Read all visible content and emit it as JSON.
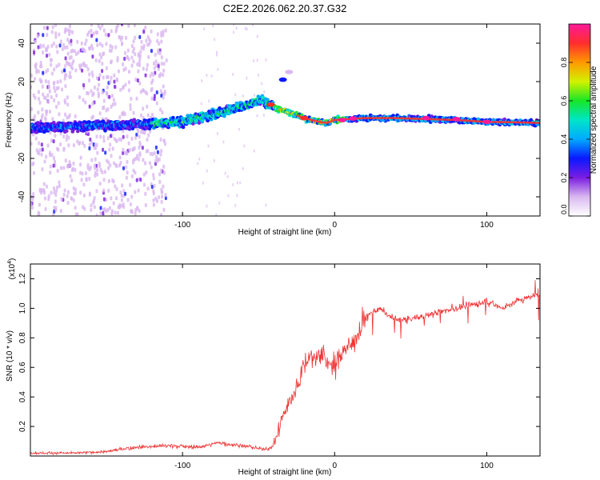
{
  "figure_title": "C2E2.2026.062.20.37.G32",
  "chart_data": [
    {
      "type": "heatmap",
      "title": "C2E2.2026.062.20.37.G32",
      "xlabel": "Height of straight line (km)",
      "ylabel": "Frequency (Hz)",
      "xlim": [
        -200,
        135
      ],
      "ylim": [
        -50,
        50
      ],
      "x_ticks": [
        -100,
        0,
        100
      ],
      "y_ticks": [
        -40,
        -20,
        0,
        20,
        40
      ],
      "x_tick_labels": [
        "-100",
        "0",
        "100"
      ],
      "y_tick_labels": [
        "-40",
        "-20",
        "0",
        "20",
        "40"
      ],
      "grid": false,
      "ridge_description": "Doppler frequency trace",
      "ridge": {
        "x": [
          -200,
          -180,
          -160,
          -140,
          -120,
          -100,
          -90,
          -80,
          -70,
          -60,
          -55,
          -50,
          -47,
          -45,
          -42,
          -40,
          -35,
          -30,
          -25,
          -20,
          -15,
          -10,
          -5,
          0,
          20,
          40,
          60,
          80,
          100,
          120,
          135
        ],
        "y": [
          -4,
          -3.5,
          -3,
          -2.5,
          -2,
          -1,
          1,
          3,
          5,
          7.5,
          8.5,
          10,
          10.5,
          9,
          8,
          7,
          5,
          4,
          2.5,
          1,
          0,
          -1,
          -1.5,
          0,
          1,
          1,
          0.5,
          0,
          -1,
          -1.2,
          -1.5
        ]
      },
      "scatter_region": {
        "x_from": -200,
        "x_to": -115
      },
      "colorbar": {
        "label": "Normalized spectral amplitude",
        "range": [
          0,
          1
        ],
        "ticks": [
          0.0,
          0.2,
          0.4,
          0.6,
          0.8
        ],
        "tick_labels": [
          "0.0",
          "0.2",
          "0.4",
          "0.6",
          "0.8"
        ],
        "colors": [
          "#ffffff",
          "#d9b8f0",
          "#7a1de0",
          "#0a18ff",
          "#00aaff",
          "#00e5c8",
          "#17e627",
          "#d2f200",
          "#ff9900",
          "#ff2d2d",
          "#ff1a99"
        ]
      }
    },
    {
      "type": "line",
      "xlabel": "Height of straight line (km)",
      "ylabel": "SNR (10 * v/v)",
      "scale_label": "(x10",
      "scale_exp": "4",
      "scale_close": ")",
      "xlim": [
        -200,
        135
      ],
      "ylim": [
        0,
        1.3
      ],
      "x_ticks": [
        -100,
        0,
        100
      ],
      "y_ticks": [
        0.2,
        0.4,
        0.6,
        0.8,
        1.0,
        1.2
      ],
      "x_tick_labels": [
        "-100",
        "0",
        "100"
      ],
      "y_tick_labels": [
        "0.2",
        "0.4",
        "0.6",
        "0.8",
        "1.0",
        "1.2"
      ],
      "color": "#ee3333",
      "grid": false,
      "series": [
        {
          "name": "SNR",
          "x": [
            -200,
            -170,
            -150,
            -130,
            -110,
            -90,
            -75,
            -70,
            -60,
            -50,
            -42,
            -38,
            -35,
            -32,
            -30,
            -27,
            -24,
            -20,
            -17,
            -14,
            -10,
            -5,
            0,
            5,
            10,
            15,
            20,
            25,
            30,
            35,
            40,
            45,
            50,
            60,
            70,
            80,
            90,
            100,
            110,
            120,
            130,
            135
          ],
          "y": [
            0.02,
            0.02,
            0.03,
            0.06,
            0.07,
            0.06,
            0.09,
            0.08,
            0.07,
            0.05,
            0.05,
            0.13,
            0.25,
            0.32,
            0.36,
            0.42,
            0.5,
            0.62,
            0.68,
            0.65,
            0.7,
            0.63,
            0.6,
            0.72,
            0.75,
            0.82,
            0.93,
            0.98,
            1.0,
            0.95,
            0.93,
            0.92,
            0.93,
            0.95,
            0.98,
            1.0,
            1.02,
            1.05,
            1.0,
            1.05,
            1.08,
            1.1
          ]
        }
      ]
    }
  ]
}
